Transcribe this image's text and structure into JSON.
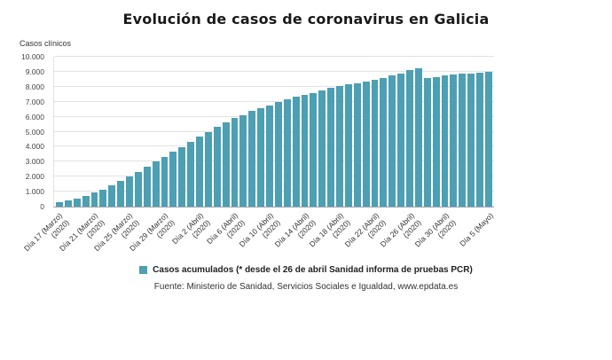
{
  "page": {
    "source": "Fuente: Ministerio de Sanidad, Servicios Sociales e Igualdad, www.epdata.es"
  },
  "legend": {
    "label": "Casos acumulados (* desde el 26 de abril Sanidad informa de pruebas PCR)",
    "color": "#4d9fb3"
  },
  "chart_data": {
    "type": "bar",
    "title": "Evolución de casos de coronavirus en Galicia",
    "ylabel": "Casos clínicos",
    "xlabel": "",
    "ylim": [
      0,
      10000
    ],
    "grid": true,
    "legend_position": "bottom",
    "bar_color": "#4d9fb3",
    "yticks": [
      "0",
      "1.000",
      "2.000",
      "3.000",
      "4.000",
      "5.000",
      "6.000",
      "7.000",
      "8.000",
      "9.000",
      "10.000"
    ],
    "x": [
      "2020-03-17",
      "2020-03-18",
      "2020-03-19",
      "2020-03-20",
      "2020-03-21",
      "2020-03-22",
      "2020-03-23",
      "2020-03-24",
      "2020-03-25",
      "2020-03-26",
      "2020-03-27",
      "2020-03-28",
      "2020-03-29",
      "2020-03-30",
      "2020-03-31",
      "2020-04-01",
      "2020-04-02",
      "2020-04-03",
      "2020-04-04",
      "2020-04-05",
      "2020-04-06",
      "2020-04-07",
      "2020-04-08",
      "2020-04-09",
      "2020-04-10",
      "2020-04-11",
      "2020-04-12",
      "2020-04-13",
      "2020-04-14",
      "2020-04-15",
      "2020-04-16",
      "2020-04-17",
      "2020-04-18",
      "2020-04-19",
      "2020-04-20",
      "2020-04-21",
      "2020-04-22",
      "2020-04-23",
      "2020-04-24",
      "2020-04-25",
      "2020-04-26",
      "2020-04-27",
      "2020-04-28",
      "2020-04-29",
      "2020-04-30",
      "2020-05-01",
      "2020-05-02",
      "2020-05-03",
      "2020-05-04",
      "2020-05-05"
    ],
    "values": [
      290,
      400,
      530,
      700,
      920,
      1150,
      1420,
      1700,
      1990,
      2320,
      2680,
      3030,
      3330,
      3650,
      3980,
      4320,
      4650,
      4990,
      5340,
      5610,
      5890,
      6120,
      6390,
      6580,
      6770,
      6960,
      7150,
      7310,
      7450,
      7600,
      7770,
      7920,
      8050,
      8150,
      8250,
      8370,
      8480,
      8610,
      8740,
      8870,
      9130,
      9260,
      8580,
      8650,
      8760,
      8820,
      8870,
      8900,
      8950,
      9010
    ],
    "xticks": [
      {
        "index": 0,
        "lines": [
          "Día 17 (Marzo)",
          "(2020)"
        ]
      },
      {
        "index": 4,
        "lines": [
          "Día 21 (Marzo)",
          "(2020)"
        ]
      },
      {
        "index": 8,
        "lines": [
          "Día 25 (Marzo)",
          "(2020)"
        ]
      },
      {
        "index": 12,
        "lines": [
          "Día 29 (Marzo)",
          "(2020)"
        ]
      },
      {
        "index": 16,
        "lines": [
          "Día 2 (Abril)",
          "(2020)"
        ]
      },
      {
        "index": 20,
        "lines": [
          "Día 6 (Abril)",
          "(2020)"
        ]
      },
      {
        "index": 24,
        "lines": [
          "Día 10 (Abril)",
          "(2020)"
        ]
      },
      {
        "index": 28,
        "lines": [
          "Día 14 (Abril)",
          "(2020)"
        ]
      },
      {
        "index": 32,
        "lines": [
          "Día 18 (Abril)",
          "(2020)"
        ]
      },
      {
        "index": 36,
        "lines": [
          "Día 22 (Abril)",
          "(2020)"
        ]
      },
      {
        "index": 40,
        "lines": [
          "Día 26 (Abril)",
          "(2020)"
        ]
      },
      {
        "index": 44,
        "lines": [
          "Día 30 (Abril)",
          "(2020)"
        ]
      },
      {
        "index": 49,
        "lines": [
          "Día 5 (Mayo)"
        ]
      }
    ]
  }
}
